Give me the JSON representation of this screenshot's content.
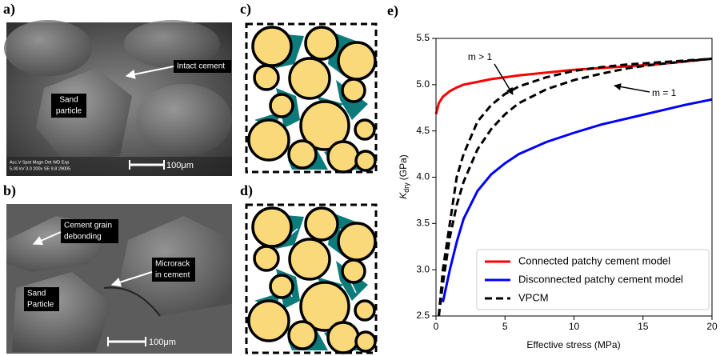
{
  "panels": {
    "a": {
      "label": "a)",
      "annotations": [
        "Intact cement",
        "Sand",
        "particle"
      ],
      "scale_bar": "100μm",
      "info": [
        "Acc.V  Spot Magn   Det  WD   Exp",
        "5.00 kV 3.0  200x    SE  9.8  29005"
      ]
    },
    "b": {
      "label": "b)",
      "annotations": [
        "Cement grain",
        "debonding",
        "Microrack",
        "in cement",
        "Sand",
        "Particle"
      ],
      "scale_bar": "100μm"
    },
    "c": {
      "label": "c)"
    },
    "d": {
      "label": "d)"
    },
    "e": {
      "label": "e)"
    }
  },
  "chart_data": {
    "type": "line",
    "xlabel": "Effective stress (MPa)",
    "ylabel": {
      "symbol": "K",
      "subscript": "dry",
      "unit": "(GPa)"
    },
    "x": [
      0,
      0.2,
      0.5,
      1,
      1.5,
      2,
      3,
      4,
      5,
      6,
      8,
      10,
      12,
      14,
      16,
      18,
      20
    ],
    "series": [
      {
        "name": "Connected patchy cement model",
        "color": "#ff0000",
        "dash": false,
        "values": [
          4.68,
          4.8,
          4.87,
          4.93,
          4.97,
          5.0,
          5.03,
          5.06,
          5.08,
          5.1,
          5.13,
          5.16,
          5.18,
          5.2,
          5.22,
          5.25,
          5.28
        ]
      },
      {
        "name": "Disconnected patchy cement model",
        "color": "#0000ff",
        "dash": false,
        "values": [
          null,
          null,
          2.65,
          3.0,
          3.3,
          3.55,
          3.85,
          4.03,
          4.15,
          4.25,
          4.38,
          4.48,
          4.57,
          4.64,
          4.71,
          4.78,
          4.84
        ]
      },
      {
        "name": "VPCM",
        "color": "#000000",
        "dash": true,
        "values": [
          null,
          2.5,
          3.0,
          3.5,
          4.0,
          4.25,
          4.6,
          4.78,
          4.9,
          4.98,
          5.08,
          5.15,
          5.19,
          5.22,
          5.24,
          5.26,
          5.28
        ]
      },
      {
        "color": "#000000",
        "dash": true,
        "values": [
          null,
          2.5,
          2.85,
          3.35,
          3.7,
          3.95,
          4.3,
          4.52,
          4.68,
          4.8,
          4.95,
          5.05,
          5.12,
          5.18,
          5.22,
          5.25,
          5.28
        ]
      }
    ],
    "annotations": [
      "m > 1",
      "m = 1"
    ],
    "xlim": [
      0,
      20
    ],
    "ylim": [
      2.5,
      5.5
    ],
    "xticks": [
      0,
      5,
      10,
      15,
      20
    ],
    "yticks": [
      2.5,
      {
        "value": 3,
        "label": "3.0"
      },
      3.5,
      {
        "value": 4,
        "label": "4.0"
      },
      4.5,
      {
        "value": 5,
        "label": "5.0"
      },
      5.5
    ],
    "legend": "lower right",
    "grid": false
  }
}
